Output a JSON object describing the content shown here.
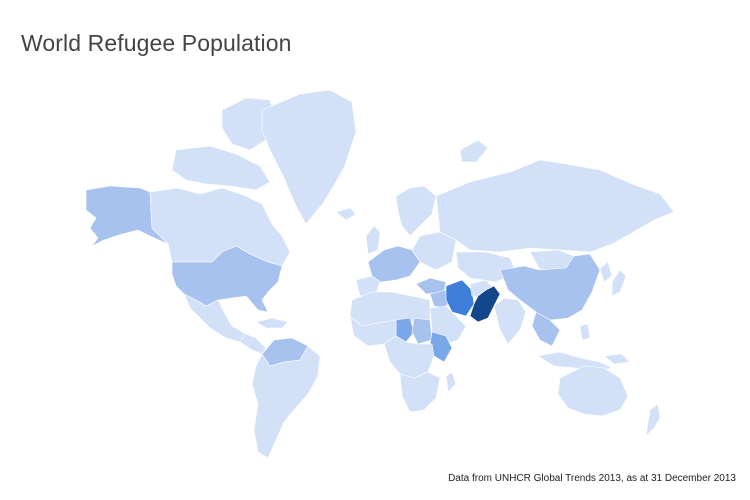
{
  "title": "World Refugee Population",
  "source_note": "Data from UNHCR Global Trends 2013, as at 31 December 2013",
  "colors": {
    "background": "#ffffff",
    "base": "#d2e1f7",
    "low": "#a7c2ef",
    "mid": "#7aa6ea",
    "high": "#3f7fd9",
    "max": "#14468c"
  },
  "legend": []
}
